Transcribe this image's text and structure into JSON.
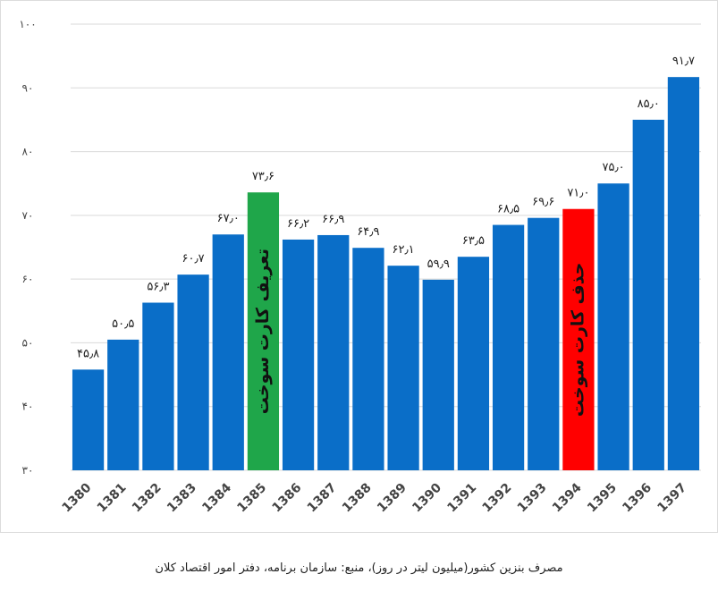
{
  "caption": "مصرف بنزین کشور(میلیون لیتر در روز)، منبع: سازمان برنامه، دفتر امور اقتصاد کلان",
  "colors": {
    "bar_default": "#0a6ec8",
    "bar_1385": "#1fa64a",
    "bar_1394": "#ff0000",
    "grid": "#d9d9d9"
  },
  "chart_data": {
    "type": "bar",
    "title": "",
    "xlabel": "",
    "ylabel": "",
    "ylim": [
      30,
      100
    ],
    "yticks": [
      30,
      40,
      50,
      60,
      70,
      80,
      90,
      100
    ],
    "ytick_labels": [
      "۳۰",
      "۴۰",
      "۵۰",
      "۶۰",
      "۷۰",
      "۸۰",
      "۹۰",
      "۱۰۰"
    ],
    "grid": true,
    "categories": [
      "1380",
      "1381",
      "1382",
      "1383",
      "1384",
      "1385",
      "1386",
      "1387",
      "1388",
      "1389",
      "1390",
      "1391",
      "1392",
      "1393",
      "1394",
      "1395",
      "1396",
      "1397"
    ],
    "values": [
      45.8,
      50.5,
      56.3,
      60.7,
      67.0,
      73.6,
      66.2,
      66.9,
      64.9,
      62.1,
      59.9,
      63.5,
      68.5,
      69.6,
      71.0,
      75.0,
      85.0,
      91.7
    ],
    "data_labels": [
      "۴۵٫۸",
      "۵۰٫۵",
      "۵۶٫۳",
      "۶۰٫۷",
      "۶۷٫۰",
      "۷۳٫۶",
      "۶۶٫۲",
      "۶۶٫۹",
      "۶۴٫۹",
      "۶۲٫۱",
      "۵۹٫۹",
      "۶۳٫۵",
      "۶۸٫۵",
      "۶۹٫۶",
      "۷۱٫۰",
      "۷۵٫۰",
      "۸۵٫۰",
      "۹۱٫۷"
    ],
    "annotations": [
      {
        "category": "1385",
        "text": "تعریف کارت سوخت"
      },
      {
        "category": "1394",
        "text": "حذف کارت سوخت"
      }
    ]
  }
}
